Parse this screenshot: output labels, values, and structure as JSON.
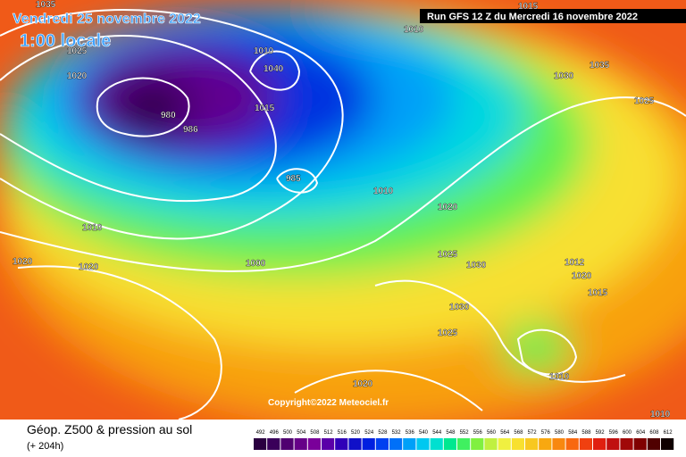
{
  "header": {
    "valid_date": "Vendredi 25 novembre 2022",
    "local_time": "1:00 locale",
    "run": "Run GFS 12 Z du Mercredi 16 novembre 2022",
    "copyright": "Copyright©2022 Meteociel.fr"
  },
  "footer": {
    "title": "Géop. Z500 & pression au sol",
    "lead": "(+ 204h)"
  },
  "legend": {
    "values": [
      492,
      496,
      500,
      504,
      508,
      512,
      516,
      520,
      524,
      528,
      532,
      536,
      540,
      544,
      548,
      552,
      556,
      560,
      564,
      568,
      572,
      576,
      580,
      584,
      588,
      592,
      596,
      600,
      604,
      608,
      612
    ],
    "colors": [
      "#2a0040",
      "#3a005a",
      "#500070",
      "#660088",
      "#7a009a",
      "#5a00a8",
      "#3000b8",
      "#1010c8",
      "#0020e0",
      "#0040f0",
      "#0070f8",
      "#00a0f8",
      "#00c8f0",
      "#00e0d0",
      "#00e890",
      "#40f060",
      "#80f040",
      "#c0f040",
      "#f0f040",
      "#f8e030",
      "#f8c820",
      "#f8a810",
      "#f88810",
      "#f86810",
      "#f04010",
      "#e02010",
      "#c01010",
      "#a00808",
      "#800000",
      "#500000",
      "#100000"
    ]
  },
  "isobar_labels": [
    "1035",
    "1025",
    "1020",
    "1010",
    "1020",
    "1020",
    "1000",
    "985",
    "980",
    "986",
    "1015",
    "1040",
    "1010",
    "1010",
    "1020",
    "1025",
    "1030",
    "1030",
    "1025",
    "1020",
    "1010",
    "1010",
    "1030",
    "1035",
    "1025",
    "1015",
    "1012",
    "1020",
    "1015",
    "1010"
  ]
}
